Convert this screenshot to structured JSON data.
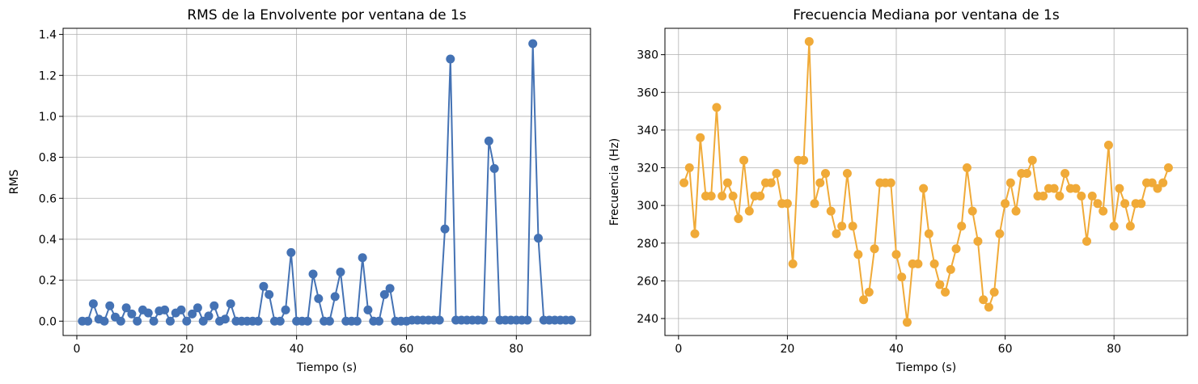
{
  "chart_data": [
    {
      "type": "line",
      "title": "RMS de la Envolvente por ventana de 1s",
      "xlabel": "Tiempo (s)",
      "ylabel": "RMS",
      "xlim": [
        -2.5,
        93.5
      ],
      "ylim": [
        -0.07,
        1.43
      ],
      "xticks": [
        0,
        20,
        40,
        60,
        80
      ],
      "yticks": [
        0.0,
        0.2,
        0.4,
        0.6,
        0.8,
        1.0,
        1.2,
        1.4
      ],
      "ytick_labels": [
        "0.0",
        "0.2",
        "0.4",
        "0.6",
        "0.8",
        "1.0",
        "1.2",
        "1.4"
      ],
      "grid": true,
      "color": "#4472b4",
      "marker": "circle",
      "series": [
        {
          "x": [
            1,
            2,
            3,
            4,
            5,
            6,
            7,
            8,
            9,
            10,
            11,
            12,
            13,
            14,
            15,
            16,
            17,
            18,
            19,
            20,
            21,
            22,
            23,
            24,
            25,
            26,
            27,
            28,
            29,
            30,
            31,
            32,
            33,
            34,
            35,
            36,
            37,
            38,
            39,
            40,
            41,
            42,
            43,
            44,
            45,
            46,
            47,
            48,
            49,
            50,
            51,
            52,
            53,
            54,
            55,
            56,
            57,
            58,
            59,
            60,
            61,
            62,
            63,
            64,
            65,
            66,
            67,
            68,
            69,
            70,
            71,
            72,
            73,
            74,
            75,
            76,
            77,
            78,
            79,
            80,
            81,
            82,
            83,
            84,
            85,
            86,
            87,
            88,
            89,
            90
          ],
          "values": [
            0.0,
            0.0,
            0.085,
            0.01,
            0.0,
            0.075,
            0.02,
            0.0,
            0.065,
            0.035,
            0.0,
            0.055,
            0.04,
            0.0,
            0.05,
            0.055,
            0.0,
            0.04,
            0.055,
            0.0,
            0.035,
            0.065,
            0.0,
            0.025,
            0.075,
            0.0,
            0.01,
            0.085,
            0.0,
            0.0,
            0.0,
            0.0,
            0.0,
            0.17,
            0.13,
            0.0,
            0.0,
            0.055,
            0.335,
            0.0,
            0.0,
            0.0,
            0.23,
            0.11,
            0.0,
            0.0,
            0.12,
            0.24,
            0.0,
            0.0,
            0.0,
            0.31,
            0.055,
            0.0,
            0.0,
            0.13,
            0.16,
            0.0,
            0.0,
            0.0,
            0.005,
            0.005,
            0.005,
            0.005,
            0.005,
            0.005,
            0.45,
            1.28,
            0.005,
            0.005,
            0.005,
            0.005,
            0.005,
            0.005,
            0.88,
            0.745,
            0.005,
            0.005,
            0.005,
            0.005,
            0.005,
            0.005,
            1.355,
            0.405,
            0.005,
            0.005,
            0.005,
            0.005,
            0.005,
            0.005
          ]
        }
      ]
    },
    {
      "type": "line",
      "title": "Frecuencia Mediana por ventana de 1s",
      "xlabel": "Tiempo (s)",
      "ylabel": "Frecuencia (Hz)",
      "xlim": [
        -2.5,
        93.5
      ],
      "ylim": [
        231,
        394
      ],
      "xticks": [
        0,
        20,
        40,
        60,
        80
      ],
      "yticks": [
        240,
        260,
        280,
        300,
        320,
        340,
        360,
        380
      ],
      "ytick_labels": [
        "240",
        "260",
        "280",
        "300",
        "320",
        "340",
        "360",
        "380"
      ],
      "grid": true,
      "color": "#f0aa38",
      "marker": "circle",
      "series": [
        {
          "x": [
            1,
            2,
            3,
            4,
            5,
            6,
            7,
            8,
            9,
            10,
            11,
            12,
            13,
            14,
            15,
            16,
            17,
            18,
            19,
            20,
            21,
            22,
            23,
            24,
            25,
            26,
            27,
            28,
            29,
            30,
            31,
            32,
            33,
            34,
            35,
            36,
            37,
            38,
            39,
            40,
            41,
            42,
            43,
            44,
            45,
            46,
            47,
            48,
            49,
            50,
            51,
            52,
            53,
            54,
            55,
            56,
            57,
            58,
            59,
            60,
            61,
            62,
            63,
            64,
            65,
            66,
            67,
            68,
            69,
            70,
            71,
            72,
            73,
            74,
            75,
            76,
            77,
            78,
            79,
            80,
            81,
            82,
            83,
            84,
            85,
            86,
            87,
            88,
            89,
            90
          ],
          "values": [
            312,
            320,
            285,
            336,
            305,
            305,
            352,
            305,
            312,
            305,
            293,
            324,
            297,
            305,
            305,
            312,
            312,
            317,
            301,
            301,
            269,
            324,
            324,
            387,
            301,
            312,
            317,
            297,
            285,
            289,
            317,
            289,
            274,
            250,
            254,
            277,
            312,
            312,
            312,
            274,
            262,
            238,
            269,
            269,
            309,
            285,
            269,
            258,
            254,
            266,
            277,
            289,
            320,
            297,
            281,
            250,
            246,
            254,
            285,
            301,
            312,
            297,
            317,
            317,
            324,
            305,
            305,
            309,
            309,
            305,
            317,
            309,
            309,
            305,
            281,
            305,
            301,
            297,
            332,
            289,
            309,
            301,
            289,
            301,
            301,
            312,
            312,
            309,
            312,
            320
          ]
        }
      ]
    }
  ]
}
